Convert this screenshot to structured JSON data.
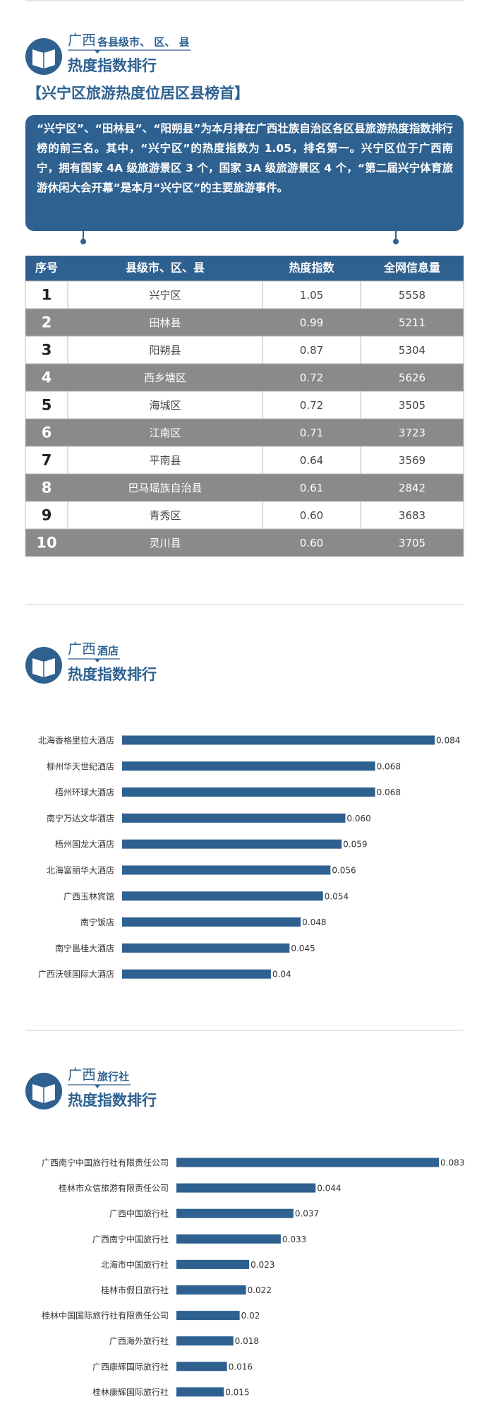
{
  "header": {
    "region": "广西",
    "subject": "各县级市、 区、 县",
    "title": "热度指数排行"
  },
  "headline": "【兴宁区旅游热度位居区县榜首】",
  "summary": "“兴宁区”、“田林县”、“阳朔县”为本月排在广西壮族自治区各区县旅游热度指数排行榜的前三名。其中，“兴宁区”的热度指数为 1.05，排名第一。兴宁区位于广西南宁，拥有国家 4A 级旅游景区 3 个，国家 3A 级旅游景区 4 个，“第二届兴宁体育旅游休闲大会开幕”是本月“兴宁区”的主要旅游事件。",
  "table": {
    "columns": [
      "序号",
      "县级市、区、县",
      "热度指数",
      "全网信息量"
    ],
    "rows": [
      [
        "1",
        "兴宁区",
        "1.05",
        "5558"
      ],
      [
        "2",
        "田林县",
        "0.99",
        "5211"
      ],
      [
        "3",
        "阳朔县",
        "0.87",
        "5304"
      ],
      [
        "4",
        "西乡塘区",
        "0.72",
        "5626"
      ],
      [
        "5",
        "海城区",
        "0.72",
        "3505"
      ],
      [
        "6",
        "江南区",
        "0.71",
        "3723"
      ],
      [
        "7",
        "平南县",
        "0.64",
        "3569"
      ],
      [
        "8",
        "巴马瑶族自治县",
        "0.61",
        "2842"
      ],
      [
        "9",
        "青秀区",
        "0.60",
        "3683"
      ],
      [
        "10",
        "灵川县",
        "0.60",
        "3705"
      ]
    ]
  },
  "chart_data": [
    {
      "type": "bar",
      "region": "广西",
      "subtitle": "酒店",
      "title": "热度指数排行",
      "color": "#2e6190",
      "categories": [
        "北海香格里拉大酒店",
        "柳州华天世纪酒店",
        "梧州环球大酒店",
        "南宁万达文华酒店",
        "梧州国龙大酒店",
        "北海富丽华大酒店",
        "广西玉林宾馆",
        "南宁饭店",
        "南宁邕桂大酒店",
        "广西沃顿国际大酒店"
      ],
      "values": [
        0.084,
        0.068,
        0.068,
        0.06,
        0.059,
        0.056,
        0.054,
        0.048,
        0.045,
        0.04
      ],
      "value_labels": [
        "0.084",
        "0.068",
        "0.068",
        "0.060",
        "0.059",
        "0.056",
        "0.054",
        "0.048",
        "0.045",
        "0.04"
      ]
    },
    {
      "type": "bar",
      "region": "广西",
      "subtitle": "旅行社",
      "title": "热度指数排行",
      "color": "#2e6190",
      "categories": [
        "广西南宁中国旅行社有限责任公司",
        "桂林市众信旅游有限责任公司",
        "广西中国旅行社",
        "广西南宁中国旅行社",
        "北海市中国旅行社",
        "桂林市假日旅行社",
        "桂林中国国际旅行社有限责任公司",
        "广西海外旅行社",
        "广西康辉国际旅行社",
        "桂林康辉国际旅行社"
      ],
      "values": [
        0.083,
        0.044,
        0.037,
        0.033,
        0.023,
        0.022,
        0.02,
        0.018,
        0.016,
        0.015
      ],
      "value_labels": [
        "0.083",
        "0.044",
        "0.037",
        "0.033",
        "0.023",
        "0.022",
        "0.02",
        "0.018",
        "0.016",
        "0.015"
      ]
    }
  ]
}
